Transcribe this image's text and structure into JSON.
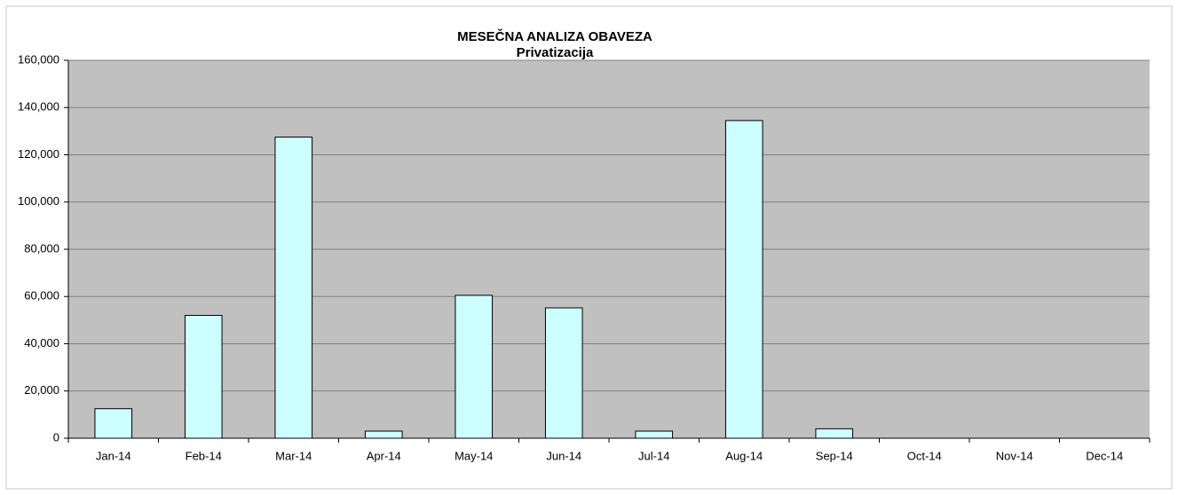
{
  "chart_data": {
    "type": "bar",
    "title": "MESEČNA  ANALIZA OBAVEZA",
    "subtitle": "Privatizacija",
    "categories": [
      "Jan-14",
      "Feb-14",
      "Mar-14",
      "Apr-14",
      "May-14",
      "Jun-14",
      "Jul-14",
      "Aug-14",
      "Sep-14",
      "Oct-14",
      "Nov-14",
      "Dec-14"
    ],
    "values": [
      12500,
      52000,
      127500,
      3000,
      60500,
      55200,
      3000,
      134500,
      4000,
      0,
      0,
      0
    ],
    "color": "#ccffff",
    "ylim": [
      0,
      160000
    ],
    "yticks": [
      0,
      {
        "value": 20000,
        "label": "20,000"
      },
      {
        "value": 40000,
        "label": "40,000"
      },
      {
        "value": 60000,
        "label": "60,000"
      },
      {
        "value": 80000,
        "label": "80,000"
      },
      {
        "value": 100000,
        "label": "100,000"
      },
      {
        "value": 120000,
        "label": "120,000"
      },
      {
        "value": 140000,
        "label": "140,000"
      },
      {
        "value": 160000,
        "label": "160,000"
      }
    ],
    "grid": true
  }
}
